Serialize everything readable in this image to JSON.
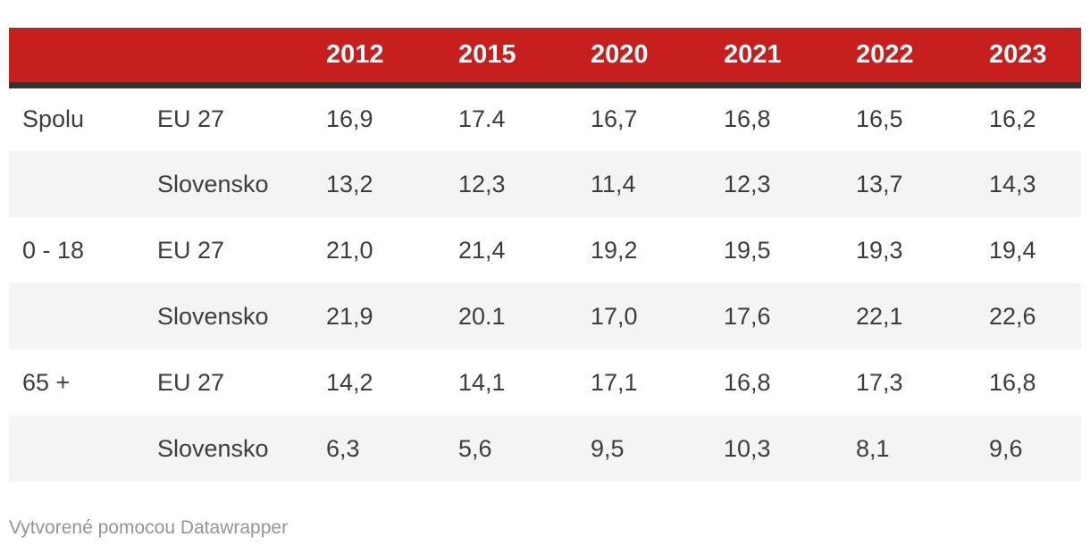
{
  "table": {
    "column_headers": [
      "",
      "",
      "2012",
      "2015",
      "2020",
      "2021",
      "2022",
      "2023"
    ],
    "rows": [
      {
        "group": "Spolu",
        "entity": "EU 27",
        "values": [
          "16,9",
          "17.4",
          "16,7",
          "16,8",
          "16,5",
          "16,2"
        ]
      },
      {
        "group": "",
        "entity": "Slovensko",
        "values": [
          "13,2",
          "12,3",
          "11,4",
          "12,3",
          "13,7",
          "14,3"
        ]
      },
      {
        "group": "0 - 18",
        "entity": "EU 27",
        "values": [
          "21,0",
          "21,4",
          "19,2",
          "19,5",
          "19,3",
          "19,4"
        ]
      },
      {
        "group": "",
        "entity": "Slovensko",
        "values": [
          "21,9",
          "20.1",
          "17,0",
          "17,6",
          "22,1",
          "22,6"
        ]
      },
      {
        "group": "65 +",
        "entity": "EU 27",
        "values": [
          "14,2",
          "14,1",
          "17,1",
          "16,8",
          "17,3",
          "16,8"
        ]
      },
      {
        "group": "",
        "entity": "Slovensko",
        "values": [
          "6,3",
          "5,6",
          "9,5",
          "10,3",
          "8,1",
          "9,6"
        ]
      }
    ]
  },
  "footer": {
    "attribution": "Vytvorené pomocou Datawrapper"
  },
  "colors": {
    "header-bg": "#c71e1e",
    "header-text": "#ffffff",
    "divider": "#333333",
    "row-alt-bg": "#f4f4f4",
    "body-text": "#3d3d3d",
    "attribution-text": "#949494"
  },
  "chart_data": {
    "type": "table",
    "columns": [
      "2012",
      "2015",
      "2020",
      "2021",
      "2022",
      "2023"
    ],
    "row_groups": [
      "Spolu",
      "0 - 18",
      "65 +"
    ],
    "rows": [
      {
        "group": "Spolu",
        "series": "EU 27",
        "values": [
          16.9,
          17.4,
          16.7,
          16.8,
          16.5,
          16.2
        ]
      },
      {
        "group": "Spolu",
        "series": "Slovensko",
        "values": [
          13.2,
          12.3,
          11.4,
          12.3,
          13.7,
          14.3
        ]
      },
      {
        "group": "0 - 18",
        "series": "EU 27",
        "values": [
          21.0,
          21.4,
          19.2,
          19.5,
          19.3,
          19.4
        ]
      },
      {
        "group": "0 - 18",
        "series": "Slovensko",
        "values": [
          21.9,
          20.1,
          17.0,
          17.6,
          22.1,
          22.6
        ]
      },
      {
        "group": "65 +",
        "series": "EU 27",
        "values": [
          14.2,
          14.1,
          17.1,
          16.8,
          17.3,
          16.8
        ]
      },
      {
        "group": "65 +",
        "series": "Slovensko",
        "values": [
          6.3,
          5.6,
          9.5,
          10.3,
          8.1,
          9.6
        ]
      }
    ],
    "title": "",
    "legend_position": "none",
    "grid": false
  }
}
